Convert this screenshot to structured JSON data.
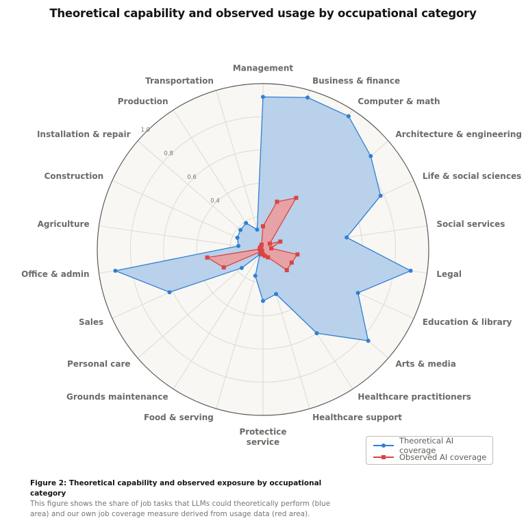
{
  "title": "Theoretical capability and observed usage by occupational category",
  "chart_data": {
    "type": "radar",
    "title": "Theoretical capability and observed usage by occupational category",
    "categories": [
      "Management",
      "Business & finance",
      "Computer & math",
      "Architecture & engineering",
      "Life & social sciences",
      "Social services",
      "Legal",
      "Education & library",
      "Arts & media",
      "Healthcare practitioners",
      "Healthcare support",
      "Protectice service",
      "Food & serving",
      "Grounds maintenance",
      "Personal care",
      "Sales",
      "Office & admin",
      "Agriculture",
      "Construction",
      "Installation & repair",
      "Production",
      "Transportation"
    ],
    "radial_ticks": [
      0.4,
      0.6,
      0.8,
      1.0
    ],
    "radial_tick_labels": [
      "0.4",
      "0.6",
      "0.8",
      "1.0"
    ],
    "rlim": [
      0,
      1.0
    ],
    "grid": true,
    "legend_position": "bottom-right",
    "series": [
      {
        "name": "Theoretical AI coverage",
        "color": "#2f7fd3",
        "fill": "#b5cfea",
        "marker": "circle",
        "values": [
          0.92,
          0.955,
          0.955,
          0.86,
          0.78,
          0.51,
          0.9,
          0.63,
          0.84,
          0.6,
          0.28,
          0.31,
          0.165,
          0.035,
          0.17,
          0.62,
          0.9,
          0.15,
          0.17,
          0.18,
          0.19,
          0.125
        ]
      },
      {
        "name": "Observed AI coverage",
        "color": "#d94444",
        "fill": "#ee9a9a",
        "marker": "square",
        "values": [
          0.14,
          0.3,
          0.37,
          0.054,
          0.115,
          0.05,
          0.21,
          0.19,
          0.19,
          0.056,
          0.04,
          0.03,
          0.03,
          0.01,
          0.02,
          0.26,
          0.34,
          0.02,
          0.02,
          0.02,
          0.02,
          0.03
        ]
      }
    ]
  },
  "legend": {
    "items": [
      {
        "label": "Theoretical AI coverage",
        "color": "#2f7fd3"
      },
      {
        "label": "Observed AI coverage",
        "color": "#d94444"
      }
    ]
  },
  "caption": {
    "title": "Figure 2: Theoretical capability and observed exposure by occupational category",
    "text": "This figure shows the share of job tasks that LLMs could theoretically perform (blue area) and our own job coverage measure derived from usage data (red area)."
  }
}
